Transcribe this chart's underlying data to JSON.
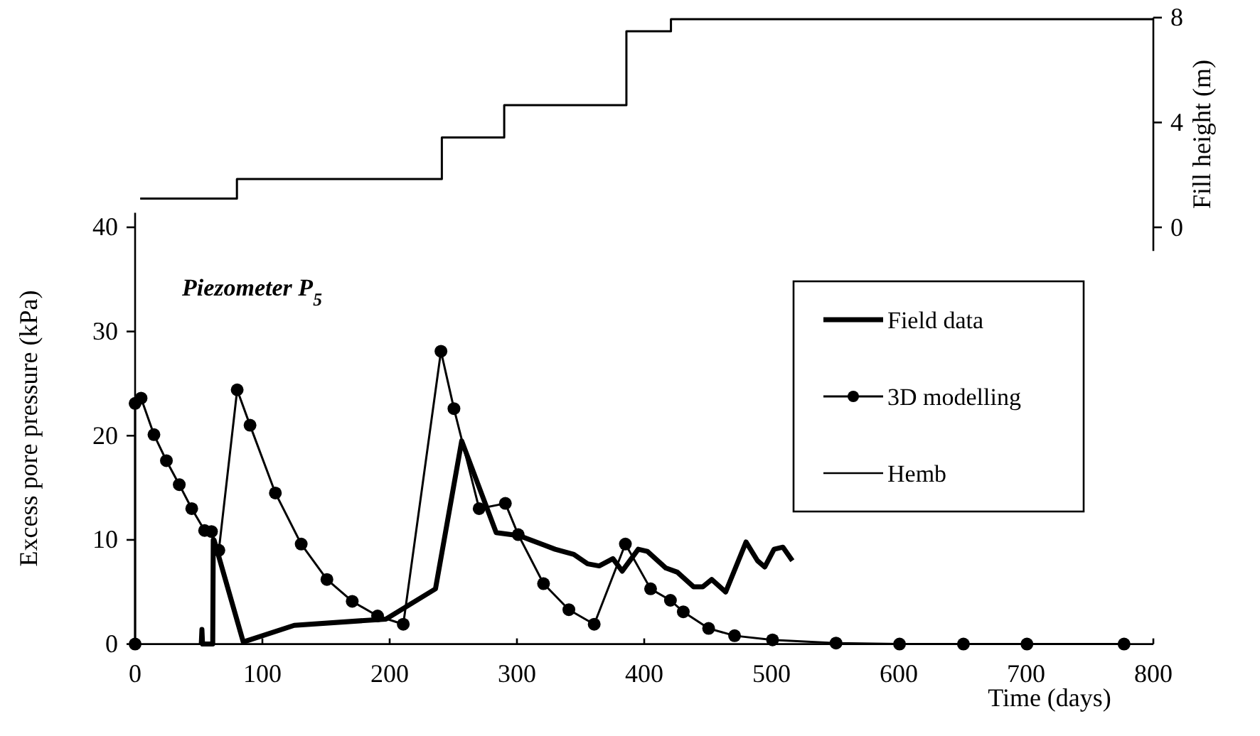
{
  "chart_data": [
    {
      "type": "step",
      "y2label": "Fill height (m)",
      "xlim": [
        0,
        800
      ],
      "y2lim": [
        -0.9,
        8
      ],
      "y2ticks": [
        0,
        4,
        8
      ],
      "tick_labels": "y",
      "series": [
        {
          "name": "Hemb",
          "axis": "y2",
          "color": "#000000",
          "x": [
            4,
            80,
            241,
            290,
            386,
            421,
            800
          ],
          "values": [
            1.1,
            1.84,
            3.43,
            4.66,
            7.48,
            7.94,
            7.94
          ]
        }
      ]
    },
    {
      "type": "line",
      "xlabel": "Time (days)",
      "ylabel": "Excess  pore pressure (kPa)",
      "annotations": [
        "Piezometer P$_{5}$"
      ],
      "xlim": [
        0,
        800
      ],
      "xticks": [
        0,
        100,
        200,
        300,
        400,
        500,
        600,
        700,
        800
      ],
      "ylim": [
        0,
        41.4
      ],
      "yticks": [
        0,
        10,
        20,
        30,
        40
      ],
      "legend": "right",
      "series": [
        {
          "name": "Field data",
          "color": "#000000",
          "x": [
            52,
            52.5,
            53,
            61,
            61.4,
            62,
            85,
            125,
            197,
            236,
            256.6,
            283.7,
            301.8,
            330,
            344.7,
            355.5,
            364.6,
            375.4,
            382.7,
            395.3,
            402.5,
            417,
            426,
            438.7,
            446,
            453,
            464,
            480,
            489,
            494.7,
            502,
            509,
            516.4
          ],
          "values": [
            0,
            1.4,
            0,
            0,
            10,
            10,
            0.2,
            1.8,
            2.4,
            5.3,
            19.5,
            10.7,
            10.4,
            9.1,
            8.6,
            7.7,
            7.5,
            8.2,
            7.0,
            9.1,
            8.9,
            7.3,
            6.9,
            5.5,
            5.5,
            6.2,
            5.0,
            9.8,
            8.0,
            7.4,
            9.1,
            9.3,
            8.0
          ]
        },
        {
          "name": "3D modelling",
          "color": "#000000",
          "marker": "circle",
          "x": [
            0,
            0,
            4.7,
            14.8,
            24.6,
            34.7,
            44.5,
            54.6,
            60,
            65.8,
            80.2,
            90.3,
            110.2,
            130.5,
            150.7,
            170.6,
            190.5,
            210.7,
            240.3,
            250.5,
            270.3,
            290.9,
            301,
            320.9,
            340.8,
            360.7,
            385.2,
            405,
            420.6,
            430.7,
            450.6,
            471,
            500.8,
            550.7,
            600.6,
            650.8,
            700.7,
            777
          ],
          "values": [
            0,
            23.1,
            23.6,
            20.1,
            17.6,
            15.3,
            13.0,
            10.9,
            10.8,
            9.0,
            24.4,
            21.0,
            14.5,
            9.6,
            6.2,
            4.1,
            2.7,
            1.9,
            28.1,
            22.6,
            13.0,
            13.5,
            10.5,
            5.8,
            3.3,
            1.9,
            9.6,
            5.3,
            4.2,
            3.1,
            1.5,
            0.8,
            0.4,
            0.1,
            0,
            0,
            0,
            0
          ]
        }
      ]
    }
  ]
}
